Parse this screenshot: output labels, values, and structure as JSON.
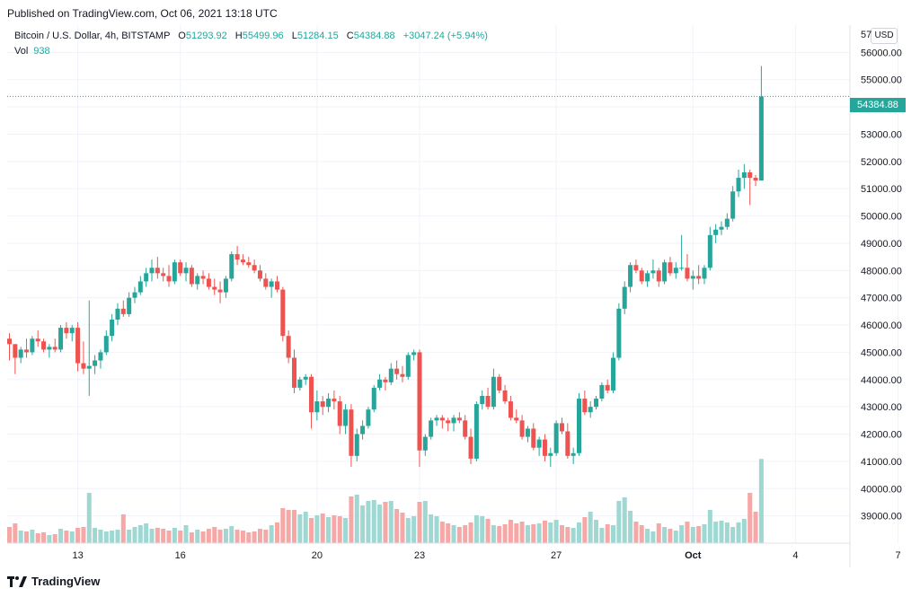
{
  "header": {
    "published": "Published on TradingView.com, Oct 06, 2021 13:18 UTC"
  },
  "legend": {
    "symbol": "Bitcoin / U.S. Dollar, 4h, BITSTAMP",
    "open_label": "O",
    "open": "51293.92",
    "high_label": "H",
    "high": "55499.96",
    "low_label": "L",
    "low": "51284.15",
    "close_label": "C",
    "close": "54384.88",
    "change": "+3047.24 (+5.94%)",
    "vol_label": "Vol",
    "vol": "938"
  },
  "price_axis": {
    "currency": "USD",
    "last_price": "54384.88",
    "top_label": "57"
  },
  "footer": {
    "brand": "TradingView"
  },
  "colors": {
    "up": "#26a69a",
    "down": "#ef5350",
    "up_vol": "#9fd7d2",
    "down_vol": "#f5a8a6",
    "grid": "#f0f3fa"
  },
  "chart_data": {
    "type": "candlestick",
    "title": "Bitcoin / U.S. Dollar, 4h, BITSTAMP",
    "ylim": [
      38000,
      57000
    ],
    "y_ticks": [
      39000,
      40000,
      41000,
      42000,
      43000,
      44000,
      45000,
      46000,
      47000,
      48000,
      49000,
      50000,
      51000,
      52000,
      53000,
      54000,
      55000,
      56000
    ],
    "x_ticks": [
      {
        "label": "13",
        "index": 12
      },
      {
        "label": "16",
        "index": 30
      },
      {
        "label": "20",
        "index": 54
      },
      {
        "label": "23",
        "index": 72
      },
      {
        "label": "27",
        "index": 96
      },
      {
        "label": "Oct",
        "index": 120
      },
      {
        "label": "4",
        "index": 138
      },
      {
        "label": "7",
        "index": 156
      }
    ],
    "candles": [
      [
        45500,
        45700,
        44700,
        45300,
        180
      ],
      [
        45300,
        45300,
        44200,
        44800,
        220
      ],
      [
        44800,
        45200,
        44600,
        45100,
        140
      ],
      [
        45100,
        45500,
        44800,
        45000,
        130
      ],
      [
        45000,
        45600,
        44900,
        45500,
        150
      ],
      [
        45500,
        45800,
        45200,
        45400,
        110
      ],
      [
        45400,
        45500,
        45000,
        45100,
        120
      ],
      [
        45100,
        45300,
        44800,
        45200,
        90
      ],
      [
        45200,
        45500,
        45000,
        45100,
        100
      ],
      [
        45100,
        46000,
        45000,
        45900,
        160
      ],
      [
        45900,
        46100,
        45500,
        45700,
        140
      ],
      [
        45700,
        46000,
        45400,
        45900,
        130
      ],
      [
        45900,
        46100,
        44300,
        44600,
        170
      ],
      [
        44600,
        45400,
        44200,
        44400,
        180
      ],
      [
        44400,
        46900,
        43400,
        44500,
        560
      ],
      [
        44500,
        44900,
        44200,
        44700,
        170
      ],
      [
        44700,
        45100,
        44400,
        45000,
        150
      ],
      [
        45000,
        45800,
        44900,
        45600,
        130
      ],
      [
        45600,
        46400,
        45400,
        46200,
        140
      ],
      [
        46200,
        46800,
        46000,
        46600,
        150
      ],
      [
        46600,
        46900,
        46300,
        46400,
        320
      ],
      [
        46400,
        47200,
        46300,
        47000,
        150
      ],
      [
        47000,
        47400,
        46800,
        47200,
        180
      ],
      [
        47200,
        47800,
        47100,
        47600,
        200
      ],
      [
        47600,
        48100,
        47400,
        47900,
        220
      ],
      [
        47900,
        48400,
        47600,
        48100,
        160
      ],
      [
        48100,
        48500,
        47700,
        47900,
        170
      ],
      [
        47900,
        48100,
        47600,
        47800,
        160
      ],
      [
        47800,
        48200,
        47400,
        47600,
        140
      ],
      [
        47600,
        48400,
        47500,
        48300,
        170
      ],
      [
        48300,
        48400,
        47800,
        47900,
        140
      ],
      [
        47900,
        48300,
        47600,
        48100,
        200
      ],
      [
        48100,
        48200,
        47400,
        47500,
        120
      ],
      [
        47500,
        47900,
        47300,
        47800,
        150
      ],
      [
        47800,
        48000,
        47500,
        47700,
        130
      ],
      [
        47700,
        47900,
        47300,
        47400,
        160
      ],
      [
        47400,
        47700,
        47100,
        47300,
        180
      ],
      [
        47300,
        47600,
        46800,
        47200,
        150
      ],
      [
        47200,
        47800,
        47000,
        47700,
        160
      ],
      [
        47700,
        48700,
        47600,
        48600,
        190
      ],
      [
        48600,
        48900,
        48200,
        48400,
        150
      ],
      [
        48400,
        48600,
        48200,
        48300,
        140
      ],
      [
        48300,
        48500,
        48100,
        48200,
        120
      ],
      [
        48200,
        48400,
        47900,
        48000,
        130
      ],
      [
        48000,
        48200,
        47600,
        47700,
        160
      ],
      [
        47700,
        47900,
        47300,
        47400,
        150
      ],
      [
        47400,
        47700,
        47000,
        47600,
        200
      ],
      [
        47600,
        47800,
        47200,
        47300,
        230
      ],
      [
        47300,
        47400,
        45400,
        45600,
        390
      ],
      [
        45600,
        45800,
        44600,
        44800,
        370
      ],
      [
        44800,
        45100,
        43500,
        43700,
        370
      ],
      [
        43700,
        44100,
        43600,
        44000,
        320
      ],
      [
        44000,
        44200,
        43800,
        44100,
        350
      ],
      [
        44100,
        44200,
        42200,
        42800,
        280
      ],
      [
        42800,
        43600,
        42500,
        43200,
        310
      ],
      [
        43200,
        43400,
        42700,
        43000,
        330
      ],
      [
        43000,
        43500,
        42800,
        43300,
        290
      ],
      [
        43300,
        43600,
        42900,
        43200,
        310
      ],
      [
        43200,
        43400,
        42000,
        42300,
        300
      ],
      [
        42300,
        43100,
        42000,
        42900,
        280
      ],
      [
        42900,
        43100,
        40800,
        41200,
        520
      ],
      [
        41200,
        42200,
        41000,
        42000,
        540
      ],
      [
        42000,
        42500,
        41800,
        42300,
        420
      ],
      [
        42300,
        43000,
        42200,
        42900,
        470
      ],
      [
        42900,
        43800,
        42800,
        43700,
        480
      ],
      [
        43700,
        44200,
        43600,
        44000,
        430
      ],
      [
        44000,
        44100,
        43600,
        43900,
        460
      ],
      [
        43900,
        44600,
        43800,
        44400,
        470
      ],
      [
        44400,
        44700,
        44000,
        44200,
        380
      ],
      [
        44200,
        44500,
        43900,
        44100,
        340
      ],
      [
        44100,
        45000,
        44000,
        44900,
        280
      ],
      [
        44900,
        45100,
        44700,
        45000,
        300
      ],
      [
        45000,
        45100,
        40800,
        41400,
        460
      ],
      [
        41400,
        42000,
        41200,
        41900,
        470
      ],
      [
        41900,
        42600,
        41800,
        42500,
        320
      ],
      [
        42500,
        42700,
        42300,
        42600,
        300
      ],
      [
        42600,
        42700,
        42200,
        42500,
        240
      ],
      [
        42500,
        42600,
        42100,
        42400,
        220
      ],
      [
        42400,
        42700,
        42100,
        42600,
        200
      ],
      [
        42600,
        42800,
        42400,
        42500,
        180
      ],
      [
        42500,
        42700,
        41800,
        41900,
        200
      ],
      [
        41900,
        42200,
        40900,
        41100,
        230
      ],
      [
        41100,
        43200,
        41000,
        43100,
        310
      ],
      [
        43100,
        43600,
        42900,
        43400,
        300
      ],
      [
        43400,
        43700,
        42900,
        43000,
        270
      ],
      [
        43000,
        44400,
        42900,
        44100,
        200
      ],
      [
        44100,
        44200,
        43500,
        43600,
        190
      ],
      [
        43600,
        43800,
        43100,
        43200,
        210
      ],
      [
        43200,
        43400,
        42500,
        42600,
        260
      ],
      [
        42600,
        42900,
        42400,
        42500,
        220
      ],
      [
        42500,
        42700,
        41800,
        41900,
        240
      ],
      [
        41900,
        42300,
        41700,
        42200,
        200
      ],
      [
        42200,
        42400,
        41400,
        41500,
        210
      ],
      [
        41500,
        41900,
        41200,
        41800,
        220
      ],
      [
        41800,
        42000,
        41000,
        41200,
        250
      ],
      [
        41200,
        41500,
        40800,
        41300,
        230
      ],
      [
        41300,
        42500,
        41200,
        42400,
        260
      ],
      [
        42400,
        42600,
        42000,
        42100,
        200
      ],
      [
        42100,
        42400,
        41100,
        41200,
        180
      ],
      [
        41200,
        41500,
        40900,
        41300,
        170
      ],
      [
        41300,
        43500,
        41200,
        43300,
        230
      ],
      [
        43300,
        43600,
        42700,
        42800,
        290
      ],
      [
        42800,
        43200,
        42600,
        43000,
        350
      ],
      [
        43000,
        43400,
        42900,
        43300,
        260
      ],
      [
        43300,
        43900,
        43200,
        43800,
        170
      ],
      [
        43800,
        44000,
        43500,
        43600,
        210
      ],
      [
        43600,
        45000,
        43500,
        44800,
        200
      ],
      [
        44800,
        46800,
        44700,
        46600,
        470
      ],
      [
        46600,
        47600,
        46400,
        47400,
        510
      ],
      [
        47400,
        48300,
        47200,
        48200,
        360
      ],
      [
        48200,
        48400,
        47900,
        48000,
        240
      ],
      [
        48000,
        48100,
        47500,
        47600,
        200
      ],
      [
        47600,
        48000,
        47400,
        47900,
        160
      ],
      [
        47900,
        48400,
        47700,
        48000,
        130
      ],
      [
        48000,
        48100,
        47400,
        47600,
        220
      ],
      [
        47600,
        48400,
        47500,
        48300,
        180
      ],
      [
        48300,
        48500,
        47800,
        47900,
        160
      ],
      [
        47900,
        48300,
        47700,
        48100,
        140
      ],
      [
        48100,
        49300,
        48000,
        48100,
        200
      ],
      [
        48100,
        48600,
        47600,
        47700,
        240
      ],
      [
        47700,
        48000,
        47300,
        47800,
        180
      ],
      [
        47800,
        48200,
        47500,
        47700,
        190
      ],
      [
        47700,
        48200,
        47500,
        48100,
        210
      ],
      [
        48100,
        49600,
        48000,
        49300,
        370
      ],
      [
        49300,
        49700,
        49000,
        49500,
        240
      ],
      [
        49500,
        49800,
        49300,
        49600,
        250
      ],
      [
        49600,
        50100,
        49500,
        49900,
        230
      ],
      [
        49900,
        51100,
        49800,
        50900,
        180
      ],
      [
        50900,
        51700,
        50700,
        51400,
        230
      ],
      [
        51400,
        51900,
        51000,
        51600,
        270
      ],
      [
        51600,
        51700,
        50400,
        51400,
        560
      ],
      [
        51400,
        51500,
        51100,
        51300,
        350
      ],
      [
        51300,
        55500,
        51300,
        54385,
        938
      ]
    ]
  }
}
